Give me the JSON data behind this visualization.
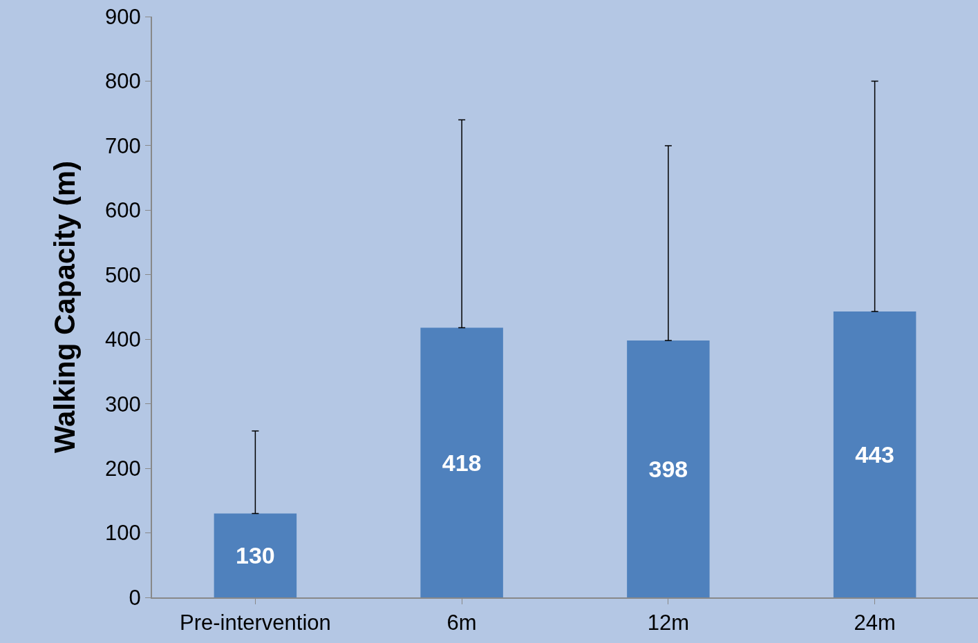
{
  "chart_data": {
    "type": "bar",
    "ylabel": "Walking Capacity (m)",
    "categories": [
      "Pre-intervention",
      "6m",
      "12m",
      "24m"
    ],
    "values": [
      130,
      418,
      398,
      443
    ],
    "errors": [
      [
        130,
        258
      ],
      [
        418,
        740
      ],
      [
        398,
        700
      ],
      [
        443,
        800
      ]
    ],
    "color": "#4f81bd",
    "ylim": [
      0,
      900
    ],
    "yticks": [
      0,
      100,
      200,
      300,
      400,
      500,
      600,
      700,
      800,
      900
    ],
    "data_labels": true
  }
}
